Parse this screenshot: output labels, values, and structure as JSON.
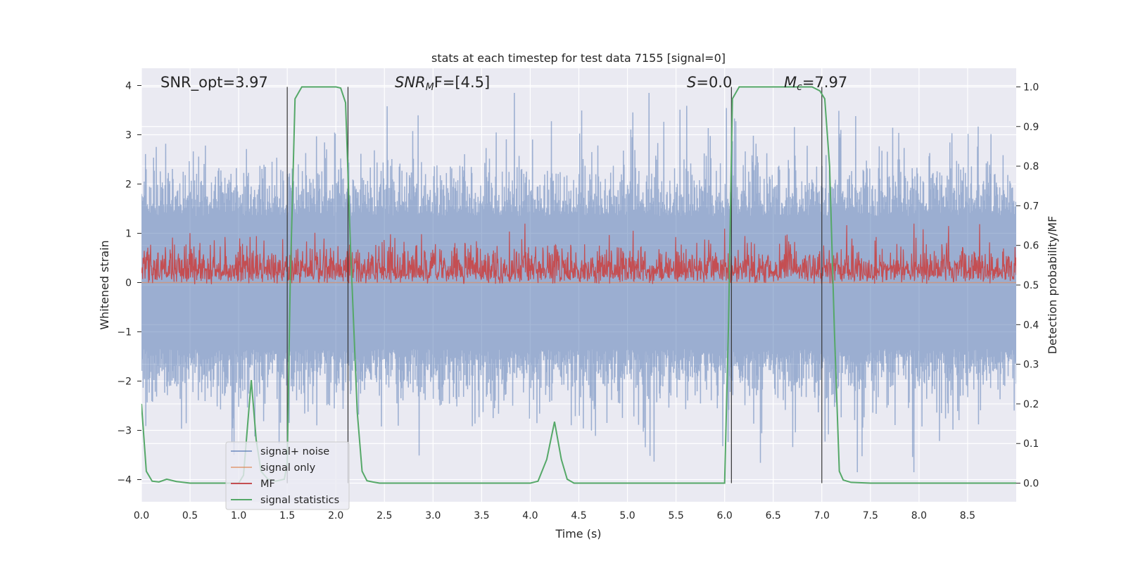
{
  "chart_data": {
    "type": "line",
    "title": "stats at each timestep for test data 7155 [signal=0]",
    "xlabel": "Time (s)",
    "ylabel": "Whitened strain",
    "y2label": "Detection probability/MF",
    "xlim": [
      0,
      9.0
    ],
    "ylim": [
      -4.45,
      4.35
    ],
    "y2lim": [
      -0.047,
      1.047
    ],
    "x_ticks": [
      "0.0",
      "0.5",
      "1.0",
      "1.5",
      "2.0",
      "2.5",
      "3.0",
      "3.5",
      "4.0",
      "4.5",
      "5.0",
      "5.5",
      "6.0",
      "6.5",
      "7.0",
      "7.5",
      "8.0",
      "8.5"
    ],
    "y_ticks": [
      "4",
      "3",
      "2",
      "1",
      "0",
      "−1",
      "−2",
      "−3",
      "−4"
    ],
    "y2_ticks": [
      "1.0",
      "0.9",
      "0.8",
      "0.7",
      "0.6",
      "0.5",
      "0.4",
      "0.3",
      "0.2",
      "0.1",
      "0.0"
    ],
    "grid": true,
    "legend_placement": "lower-left",
    "annotations": {
      "snr_opt": "SNR_opt=3.97",
      "snr_mf_prefix": "SNR",
      "snr_mf_sub": "M",
      "snr_mf_suffix": "F=[4.5]",
      "s_prefix": "S",
      "s_suffix": "=0.0",
      "mc_prefix": "M",
      "mc_sub": "c",
      "mc_suffix": "=7.97"
    },
    "vertical_markers_x": [
      1.5,
      2.125,
      6.07,
      7.0
    ],
    "series": [
      {
        "name": "signal+ noise",
        "color": "#4c72b0",
        "style": "noise trace, range about -4.0 to 3.8 whitened strain, dense across 0–9 s"
      },
      {
        "name": "signal only",
        "color": "#dd8452",
        "style": "flat at 0 (signal=0)"
      },
      {
        "name": "MF",
        "color": "#c44e52",
        "style": "matched filter output on right axis, mostly 0.5–0.62"
      },
      {
        "name": "signal statistics",
        "color": "#55a868",
        "x": [
          0.0,
          0.05,
          0.11,
          0.18,
          0.26,
          0.36,
          0.5,
          0.7,
          0.9,
          1.0,
          1.05,
          1.13,
          1.18,
          1.23,
          1.3,
          1.38,
          1.47,
          1.5,
          1.53,
          1.58,
          1.65,
          1.75,
          1.9,
          2.0,
          2.05,
          2.1,
          2.15,
          2.22,
          2.27,
          2.32,
          2.38,
          2.45,
          2.6,
          3.0,
          3.5,
          4.0,
          4.08,
          4.17,
          4.25,
          4.32,
          4.38,
          4.45,
          4.7,
          5.2,
          5.7,
          6.0,
          6.04,
          6.08,
          6.15,
          6.3,
          6.6,
          6.9,
          6.98,
          7.03,
          7.08,
          7.13,
          7.18,
          7.22,
          7.3,
          7.5,
          8.0,
          8.5,
          9.0
        ],
        "values": [
          0.2,
          0.03,
          0.005,
          0.003,
          0.01,
          0.004,
          0.0,
          0.0,
          0.0,
          0.0,
          0.02,
          0.26,
          0.11,
          0.03,
          0.01,
          0.005,
          0.01,
          0.05,
          0.5,
          0.97,
          1.0,
          1.0,
          1.0,
          1.0,
          0.997,
          0.96,
          0.6,
          0.18,
          0.03,
          0.006,
          0.003,
          0.0,
          0.0,
          0.0,
          0.0,
          0.0,
          0.005,
          0.06,
          0.155,
          0.06,
          0.01,
          0.0,
          0.0,
          0.0,
          0.0,
          0.0,
          0.4,
          0.97,
          1.0,
          1.0,
          1.0,
          1.0,
          0.99,
          0.97,
          0.8,
          0.38,
          0.03,
          0.008,
          0.002,
          0.0,
          0.0,
          0.0,
          0.0
        ]
      }
    ]
  }
}
